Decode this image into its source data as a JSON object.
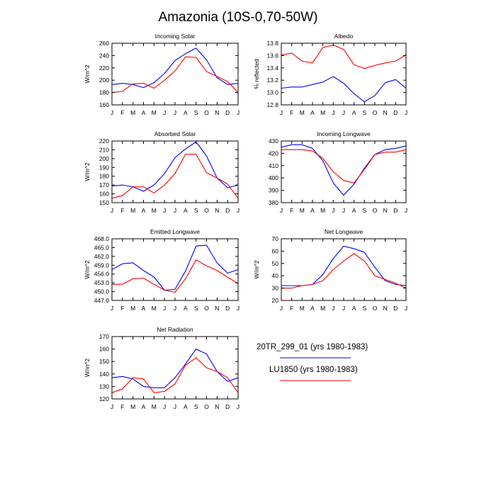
{
  "figure": {
    "title": "Amazonia (10S-0,70-50W)"
  },
  "colors": {
    "series_1": "#0000ff",
    "series_2": "#ff0000",
    "axis": "#000000"
  },
  "legend": [
    {
      "label": "20TR_299_01 (yrs 1980-1983)",
      "color": "#0000ff"
    },
    {
      "label": "LU1850 (yrs 1980-1983)",
      "color": "#ff0000"
    }
  ],
  "chart_data": [
    {
      "type": "line",
      "title": "Incoming Solar",
      "xlabel": "",
      "ylabel": "W/m^2",
      "categories": [
        "J",
        "F",
        "M",
        "A",
        "M",
        "J",
        "J",
        "A",
        "S",
        "O",
        "N",
        "D",
        "J"
      ],
      "ylim": [
        160,
        260
      ],
      "yticks": [
        160,
        180,
        200,
        220,
        240,
        260
      ],
      "ytick_labels": [
        "160",
        "180",
        "200",
        "220",
        "240",
        "260"
      ],
      "series": [
        {
          "name": "20TR_299_01 (yrs 1980-1983)",
          "values": [
            193,
            195,
            193,
            188,
            196,
            211,
            232,
            243,
            252,
            233,
            204,
            193,
            195
          ]
        },
        {
          "name": "LU1850 (yrs 1980-1983)",
          "values": [
            180,
            182,
            194,
            195,
            187,
            200,
            215,
            238,
            237,
            214,
            206,
            198,
            180
          ]
        }
      ]
    },
    {
      "type": "line",
      "title": "Albedo",
      "xlabel": "",
      "ylabel": "% reflected",
      "categories": [
        "J",
        "F",
        "M",
        "A",
        "M",
        "J",
        "J",
        "A",
        "S",
        "O",
        "N",
        "D",
        "J"
      ],
      "ylim": [
        12.8,
        13.8
      ],
      "yticks": [
        12.8,
        13.0,
        13.2,
        13.4,
        13.6,
        13.8
      ],
      "ytick_labels": [
        "12.8",
        "13.0",
        "13.2",
        "13.4",
        "13.6",
        "13.8"
      ],
      "series": [
        {
          "name": "20TR_299_01 (yrs 1980-1983)",
          "values": [
            13.07,
            13.09,
            13.09,
            13.13,
            13.17,
            13.26,
            13.15,
            12.98,
            12.85,
            12.95,
            13.16,
            13.21,
            13.07
          ]
        },
        {
          "name": "LU1850 (yrs 1980-1983)",
          "values": [
            13.61,
            13.64,
            13.51,
            13.48,
            13.73,
            13.77,
            13.7,
            13.45,
            13.39,
            13.44,
            13.48,
            13.51,
            13.61
          ]
        }
      ]
    },
    {
      "type": "line",
      "title": "Absorbed Solar",
      "xlabel": "",
      "ylabel": "W/m^2",
      "categories": [
        "J",
        "F",
        "M",
        "A",
        "M",
        "J",
        "J",
        "A",
        "S",
        "O",
        "N",
        "D",
        "J"
      ],
      "ylim": [
        150,
        220
      ],
      "yticks": [
        150,
        160,
        170,
        180,
        190,
        200,
        210,
        220
      ],
      "ytick_labels": [
        "150",
        "160",
        "170",
        "180",
        "190",
        "200",
        "210",
        "220"
      ],
      "series": [
        {
          "name": "20TR_299_01 (yrs 1980-1983)",
          "values": [
            169,
            170,
            168,
            163,
            170,
            183,
            201,
            211,
            219,
            203,
            178,
            167,
            170
          ]
        },
        {
          "name": "LU1850 (yrs 1980-1983)",
          "values": [
            155,
            158,
            168,
            168,
            161,
            170,
            183,
            205,
            205,
            184,
            178,
            171,
            155
          ]
        }
      ]
    },
    {
      "type": "line",
      "title": "Incoming Longwave",
      "xlabel": "",
      "ylabel": "",
      "categories": [
        "J",
        "F",
        "M",
        "A",
        "M",
        "J",
        "J",
        "A",
        "S",
        "O",
        "N",
        "D",
        "J"
      ],
      "ylim": [
        380,
        430
      ],
      "yticks": [
        380,
        390,
        400,
        410,
        420,
        430
      ],
      "ytick_labels": [
        "380",
        "390",
        "400",
        "410",
        "420",
        "430"
      ],
      "series": [
        {
          "name": "20TR_299_01 (yrs 1980-1983)",
          "values": [
            425,
            427,
            427,
            424,
            414,
            396,
            386,
            395,
            408,
            419,
            423,
            424,
            426
          ]
        },
        {
          "name": "LU1850 (yrs 1980-1983)",
          "values": [
            423,
            423,
            423,
            422,
            416,
            405,
            398,
            396,
            407,
            419,
            421,
            421,
            423
          ]
        }
      ]
    },
    {
      "type": "line",
      "title": "Emitted Longwave",
      "xlabel": "",
      "ylabel": "W/m^2",
      "categories": [
        "J",
        "F",
        "M",
        "A",
        "M",
        "J",
        "J",
        "A",
        "S",
        "O",
        "N",
        "D",
        "J"
      ],
      "ylim": [
        447.0,
        468.0
      ],
      "yticks": [
        447.0,
        450.0,
        453.0,
        456.0,
        459.0,
        462.0,
        465.0,
        468.0
      ],
      "ytick_labels": [
        "447.0",
        "450.0",
        "453.0",
        "456.0",
        "459.0",
        "462.0",
        "465.0",
        "468.0"
      ],
      "series": [
        {
          "name": "20TR_299_01 (yrs 1980-1983)",
          "values": [
            457.5,
            459.5,
            459.8,
            457.2,
            455.0,
            450.5,
            450.8,
            457.0,
            465.5,
            465.8,
            459.8,
            456.3,
            457.5
          ]
        },
        {
          "name": "LU1850 (yrs 1980-1983)",
          "values": [
            452.5,
            452.5,
            454.4,
            454.6,
            452.5,
            450.5,
            449.8,
            454.4,
            460.8,
            458.8,
            457.2,
            454.9,
            452.8
          ]
        }
      ]
    },
    {
      "type": "line",
      "title": "Net Longwave",
      "xlabel": "",
      "ylabel": "W/m^2",
      "categories": [
        "J",
        "F",
        "M",
        "A",
        "M",
        "J",
        "J",
        "A",
        "S",
        "O",
        "N",
        "D",
        "J"
      ],
      "ylim": [
        20,
        70
      ],
      "yticks": [
        20,
        30,
        40,
        50,
        60,
        70
      ],
      "ytick_labels": [
        "20",
        "30",
        "40",
        "50",
        "60",
        "70"
      ],
      "series": [
        {
          "name": "20TR_299_01 (yrs 1980-1983)",
          "values": [
            32,
            32,
            32,
            33,
            41,
            54,
            64,
            62,
            59,
            47,
            36,
            33,
            32
          ]
        },
        {
          "name": "LU1850 (yrs 1980-1983)",
          "values": [
            30,
            30,
            32,
            33,
            36,
            45,
            52,
            58,
            52,
            40,
            37,
            34,
            30
          ]
        }
      ]
    },
    {
      "type": "line",
      "title": "Net Radiation",
      "xlabel": "",
      "ylabel": "W/m^2",
      "categories": [
        "J",
        "F",
        "M",
        "A",
        "M",
        "J",
        "J",
        "A",
        "S",
        "O",
        "N",
        "D",
        "J"
      ],
      "ylim": [
        120,
        170
      ],
      "yticks": [
        120,
        130,
        140,
        150,
        160,
        170
      ],
      "ytick_labels": [
        "120",
        "130",
        "140",
        "150",
        "160",
        "170"
      ],
      "series": [
        {
          "name": "20TR_299_01 (yrs 1980-1983)",
          "values": [
            137,
            138,
            136,
            130,
            129,
            129,
            137,
            148,
            160,
            156,
            142,
            134,
            137
          ]
        },
        {
          "name": "LU1850 (yrs 1980-1983)",
          "values": [
            125,
            128,
            137,
            136,
            125,
            126,
            132,
            147,
            153,
            145,
            142,
            137,
            125
          ]
        }
      ]
    }
  ]
}
